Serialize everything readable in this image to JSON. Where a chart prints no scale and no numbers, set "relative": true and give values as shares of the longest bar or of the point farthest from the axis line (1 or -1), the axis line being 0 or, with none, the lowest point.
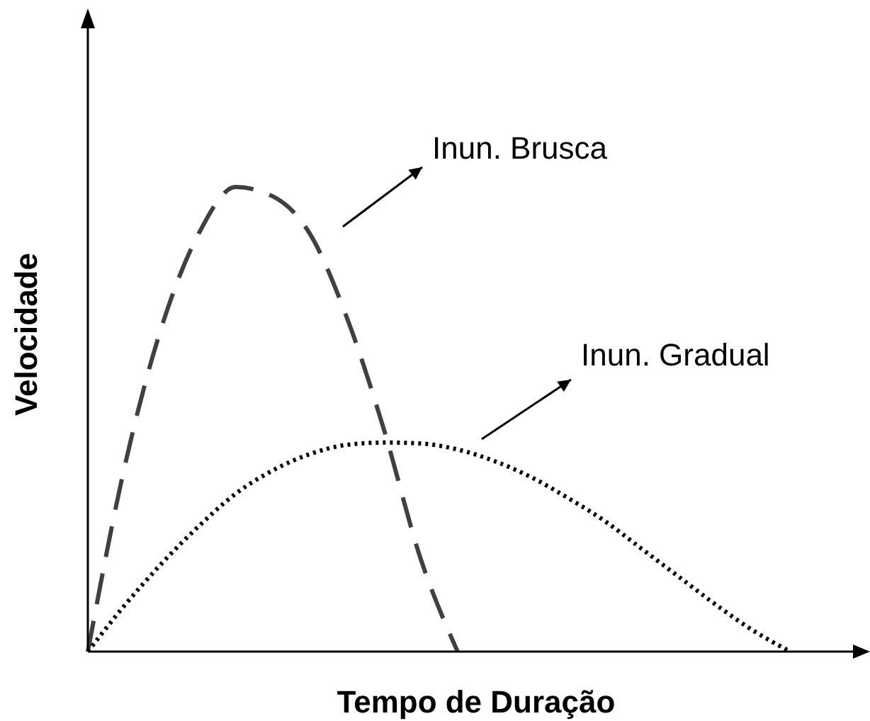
{
  "chart_data": {
    "type": "line",
    "relative": true,
    "xlabel": "Tempo de Duração",
    "ylabel": "Velocidade",
    "categories": [
      null,
      null,
      null,
      null,
      null,
      null,
      null,
      null,
      null,
      null,
      null,
      null,
      null,
      null,
      null,
      null,
      null,
      null,
      null,
      null,
      null,
      null
    ],
    "series": [
      {
        "name": "Inun. Brusca",
        "color": "#404040",
        "line_style": "dashed",
        "values": [
          0,
          0.4,
          0.7,
          0.9,
          1,
          0.98,
          0.9,
          0.72,
          0.48,
          0.2,
          0,
          null,
          null,
          null,
          null,
          null,
          null,
          null,
          null,
          null,
          null,
          null
        ]
      },
      {
        "name": "Inun. Gradual",
        "color": "#000000",
        "line_style": "dotted",
        "values": [
          0,
          0.1,
          0.19,
          0.27,
          0.34,
          0.39,
          0.425,
          0.445,
          0.45,
          0.448,
          0.435,
          0.41,
          0.375,
          0.33,
          0.28,
          0.22,
          0.16,
          0.1,
          0.045,
          0,
          null,
          null
        ]
      }
    ]
  }
}
